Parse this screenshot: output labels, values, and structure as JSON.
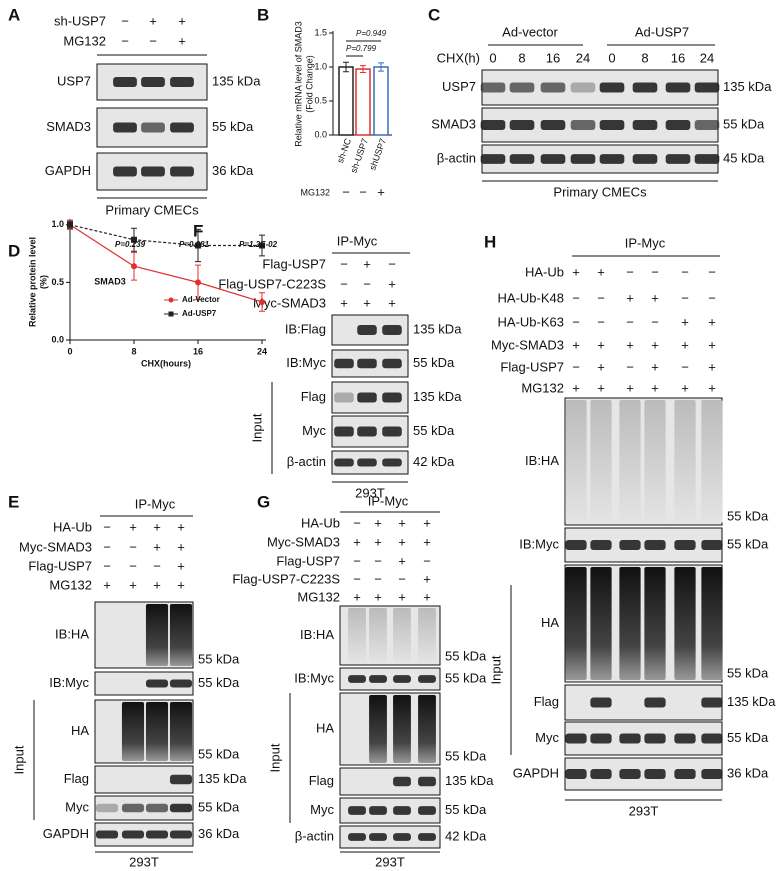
{
  "panels": {
    "A": {
      "letter": "A",
      "conditions": [
        {
          "label": "sh-USP7",
          "marks": [
            "−",
            "+",
            "+"
          ]
        },
        {
          "label": "MG132",
          "marks": [
            "−",
            "−",
            "+"
          ]
        }
      ],
      "blots": [
        {
          "label": "USP7",
          "kda": "135 kDa"
        },
        {
          "label": "SMAD3",
          "kda": "55 kDa"
        },
        {
          "label": "GAPDH",
          "kda": "36 kDa"
        }
      ],
      "footer": "Primary CMECs"
    },
    "C": {
      "letter": "C",
      "groups": [
        "Ad-vector",
        "Ad-USP7"
      ],
      "conditions": [
        {
          "label": "CHX(h)",
          "marks": [
            "0",
            "8",
            "16",
            "24",
            "0",
            "8",
            "16",
            "24"
          ]
        }
      ],
      "blots": [
        {
          "label": "USP7",
          "kda": "135 kDa"
        },
        {
          "label": "SMAD3",
          "kda": "55 kDa"
        },
        {
          "label": "β-actin",
          "kda": "45 kDa"
        }
      ],
      "footer": "Primary CMECs"
    },
    "E": {
      "letter": "E",
      "header": "IP-Myc",
      "conditions": [
        {
          "label": "HA-Ub",
          "marks": [
            "−",
            "+",
            "+",
            "+"
          ]
        },
        {
          "label": "Myc-SMAD3",
          "marks": [
            "−",
            "−",
            "+",
            "+"
          ]
        },
        {
          "label": "Flag-USP7",
          "marks": [
            "−",
            "−",
            "−",
            "+"
          ]
        },
        {
          "label": "MG132",
          "marks": [
            "+",
            "+",
            "+",
            "+"
          ]
        }
      ],
      "blots": [
        {
          "label": "IB:HA",
          "kda": "55 kDa"
        },
        {
          "label": "IB:Myc",
          "kda": "55 kDa"
        },
        {
          "label": "HA",
          "kda": "55 kDa"
        },
        {
          "label": "Flag",
          "kda": "135 kDa"
        },
        {
          "label": "Myc",
          "kda": "55 kDa"
        },
        {
          "label": "GAPDH",
          "kda": "36 kDa"
        }
      ],
      "input": "Input",
      "footer": "293T"
    },
    "F": {
      "letter": "F",
      "header": "IP-Myc",
      "conditions": [
        {
          "label": "Flag-USP7",
          "marks": [
            "−",
            "+",
            "−"
          ]
        },
        {
          "label": "Flag-USP7-C223S",
          "marks": [
            "−",
            "−",
            "+"
          ]
        },
        {
          "label": "Myc-SMAD3",
          "marks": [
            "+",
            "+",
            "+"
          ]
        }
      ],
      "blots": [
        {
          "label": "IB:Flag",
          "kda": "135 kDa"
        },
        {
          "label": "IB:Myc",
          "kda": "55 kDa"
        },
        {
          "label": "Flag",
          "kda": "135 kDa"
        },
        {
          "label": "Myc",
          "kda": "55 kDa"
        },
        {
          "label": "β-actin",
          "kda": "42 kDa"
        }
      ],
      "input": "Input",
      "footer": "293T"
    },
    "G": {
      "letter": "G",
      "header": "IP-Myc",
      "conditions": [
        {
          "label": "HA-Ub",
          "marks": [
            "−",
            "+",
            "+",
            "+"
          ]
        },
        {
          "label": "Myc-SMAD3",
          "marks": [
            "+",
            "+",
            "+",
            "+"
          ]
        },
        {
          "label": "Flag-USP7",
          "marks": [
            "−",
            "−",
            "+",
            "−"
          ]
        },
        {
          "label": "Flag-USP7-C223S",
          "marks": [
            "−",
            "−",
            "−",
            "+"
          ]
        },
        {
          "label": "MG132",
          "marks": [
            "+",
            "+",
            "+",
            "+"
          ]
        }
      ],
      "blots": [
        {
          "label": "IB:HA",
          "kda": "55 kDa"
        },
        {
          "label": "IB:Myc",
          "kda": "55 kDa"
        },
        {
          "label": "HA",
          "kda": "55 kDa"
        },
        {
          "label": "Flag",
          "kda": "135 kDa"
        },
        {
          "label": "Myc",
          "kda": "55 kDa"
        },
        {
          "label": "β-actin",
          "kda": "42 kDa"
        }
      ],
      "input": "Input",
      "footer": "293T"
    },
    "H": {
      "letter": "H",
      "header": "IP-Myc",
      "conditions": [
        {
          "label": "HA-Ub",
          "marks": [
            "+",
            "+",
            "−",
            "−",
            "−",
            "−"
          ]
        },
        {
          "label": "HA-Ub-K48",
          "marks": [
            "−",
            "−",
            "+",
            "+",
            "−",
            "−"
          ]
        },
        {
          "label": "HA-Ub-K63",
          "marks": [
            "−",
            "−",
            "−",
            "−",
            "+",
            "+"
          ]
        },
        {
          "label": "Myc-SMAD3",
          "marks": [
            "+",
            "+",
            "+",
            "+",
            "+",
            "+"
          ]
        },
        {
          "label": "Flag-USP7",
          "marks": [
            "−",
            "+",
            "−",
            "+",
            "−",
            "+"
          ]
        },
        {
          "label": "MG132",
          "marks": [
            "+",
            "+",
            "+",
            "+",
            "+",
            "+"
          ]
        }
      ],
      "blots": [
        {
          "label": "IB:HA",
          "kda": "55 kDa"
        },
        {
          "label": "IB:Myc",
          "kda": "55 kDa"
        },
        {
          "label": "HA",
          "kda": "55 kDa"
        },
        {
          "label": "Flag",
          "kda": "135 kDa"
        },
        {
          "label": "Myc",
          "kda": "55 kDa"
        },
        {
          "label": "GAPDH",
          "kda": "36 kDa"
        }
      ],
      "input": "Input",
      "footer": "293T"
    }
  },
  "chart_data": [
    {
      "type": "bar",
      "letter": "B",
      "ylabel": [
        "Relative mRNA level of SMAD3",
        "(Fold Change)"
      ],
      "categories": [
        "sh-NC",
        "sh-USP7",
        "shUSP7"
      ],
      "values": [
        1.0,
        0.97,
        1.0
      ],
      "errors": [
        0.07,
        0.05,
        0.06
      ],
      "colors": [
        "#222222",
        "#e03030",
        "#3a6cc0"
      ],
      "ylim": [
        0,
        1.5
      ],
      "yticks": [
        {
          "value": 0,
          "label": "0.0"
        },
        {
          "value": 0.5,
          "label": "0.5"
        },
        {
          "value": 1,
          "label": "1.0"
        },
        {
          "value": 1.5,
          "label": "1.5"
        }
      ],
      "condition": {
        "label": "MG132",
        "marks": [
          "−",
          "−",
          "+"
        ]
      },
      "annotations": [
        "P=0.949",
        "P=0.799"
      ]
    },
    {
      "type": "line",
      "letter": "D",
      "title": "SMAD3",
      "xlabel": "CHX(hours)",
      "ylabel": [
        "Relative protein level",
        "(%)"
      ],
      "x": [
        0,
        8,
        16,
        24
      ],
      "xlim": [
        0,
        24
      ],
      "xticks": [
        0,
        8,
        16,
        24
      ],
      "ylim": [
        0,
        1.05
      ],
      "yticks": [
        {
          "value": 0,
          "label": "0.0"
        },
        {
          "value": 0.5,
          "label": "0.5"
        },
        {
          "value": 1,
          "label": "1.0"
        }
      ],
      "series": [
        {
          "name": "Ad-Vector",
          "color": "#e03030",
          "values": [
            1.0,
            0.64,
            0.5,
            0.33
          ],
          "errors": [
            0.04,
            0.12,
            0.15,
            0.08
          ]
        },
        {
          "name": "Ad-USP7",
          "color": "#222222",
          "values": [
            1.0,
            0.87,
            0.82,
            0.82
          ],
          "errors": [
            0.03,
            0.1,
            0.14,
            0.09
          ]
        }
      ],
      "legend": "upper right",
      "annotations": [
        "P=0.239",
        "P=0.081",
        "P=1.2E-02"
      ]
    }
  ]
}
